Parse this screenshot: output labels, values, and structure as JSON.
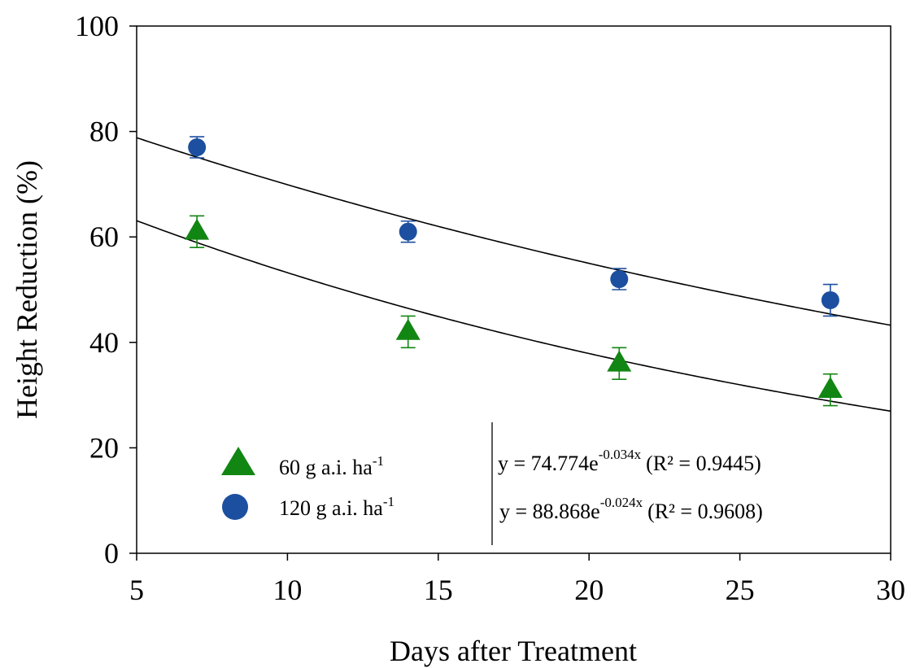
{
  "chart_data": {
    "type": "scatter",
    "xlabel": "Days after Treatment",
    "ylabel": "Height Reduction (%)",
    "xlim": [
      5,
      30
    ],
    "ylim": [
      0,
      100
    ],
    "xticks": [
      "5",
      "10",
      "15",
      "20",
      "25",
      "30"
    ],
    "yticks": [
      "0",
      "20",
      "40",
      "60",
      "80",
      "100"
    ],
    "grid": false,
    "legend_position": "bottom-left",
    "series": [
      {
        "name": "60 g a.i. ha",
        "name_superscript": "-1",
        "marker": "triangle",
        "color": "#128612",
        "x": [
          7,
          14,
          21,
          28
        ],
        "y": [
          61,
          42,
          36,
          31
        ],
        "error": [
          3,
          3,
          3,
          3
        ],
        "fit": {
          "a": 74.774,
          "b": -0.034
        }
      },
      {
        "name": "120 g a.i. ha",
        "name_superscript": "-1",
        "marker": "circle",
        "color": "#1d4fa0",
        "x": [
          7,
          14,
          21,
          28
        ],
        "y": [
          77,
          61,
          52,
          48
        ],
        "error": [
          2,
          2,
          2,
          3
        ],
        "fit": {
          "a": 88.868,
          "b": -0.024
        }
      }
    ],
    "equations": [
      {
        "base": "y = 74.774e",
        "exponent": "-0.034x",
        "r2": "(R² = 0.9445)"
      },
      {
        "base": "y = 88.868e",
        "exponent": "-0.024x",
        "r2": "(R² = 0.9608)"
      }
    ]
  }
}
